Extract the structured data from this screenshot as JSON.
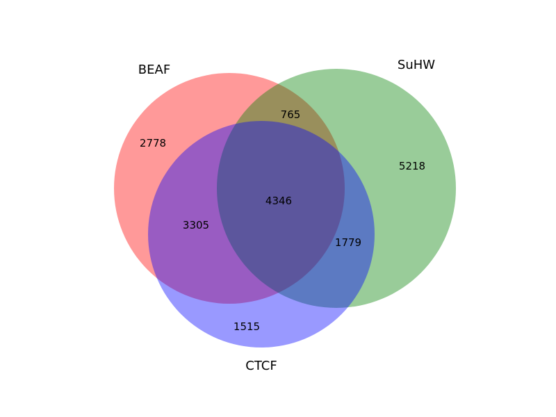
{
  "chart_data": {
    "type": "venn",
    "sets": [
      {
        "name": "BEAF",
        "color": "#ff0000",
        "opacity": 0.4
      },
      {
        "name": "SuHW",
        "color": "#008000",
        "opacity": 0.4
      },
      {
        "name": "CTCF",
        "color": "#0000ff",
        "opacity": 0.4
      }
    ],
    "regions": {
      "beaf_only": "2778",
      "suhw_only": "5218",
      "ctcf_only": "1515",
      "beaf_suhw": "765",
      "beaf_ctcf": "3305",
      "suhw_ctcf": "1779",
      "all_three": "4346"
    }
  }
}
